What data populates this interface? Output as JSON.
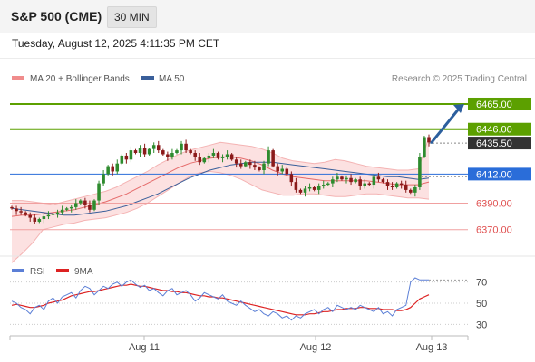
{
  "header": {
    "instrument": "S&P 500 (CME)",
    "timeframe": "30 MIN",
    "datetime": "Tuesday, August 12, 2025 4:11:35 PM CET"
  },
  "legend": {
    "bollinger_label": "MA 20 + Bollinger Bands",
    "ma50_label": "MA 50",
    "credit": "Research © 2025 Trading Central",
    "colors": {
      "bollinger": "#f08c8c",
      "ma50": "#3a5f9a"
    }
  },
  "chart_data": [
    {
      "type": "candlestick",
      "title": "",
      "x_ticks": [
        "Aug 11",
        "Aug 12",
        "Aug 13"
      ],
      "ylim": [
        6352,
        6478
      ],
      "levels": [
        {
          "value": 6465.0,
          "label": "6465.00",
          "role": "resistance",
          "color": "#5ca000"
        },
        {
          "value": 6446.0,
          "label": "6446.00",
          "role": "resistance",
          "color": "#5ca000"
        },
        {
          "value": 6435.5,
          "label": "6435.50",
          "role": "last price",
          "color": "#333333"
        },
        {
          "value": 6412.0,
          "label": "6412.00",
          "role": "pivot",
          "color": "#2a6dd9"
        },
        {
          "value": 6390.0,
          "label": "6390.00",
          "role": "support",
          "color": "#e05050"
        },
        {
          "value": 6370.0,
          "label": "6370.00",
          "role": "support",
          "color": "#e05050"
        }
      ],
      "close_path": [
        6386,
        6384,
        6383,
        6381,
        6379,
        6376,
        6378,
        6380,
        6381,
        6382,
        6383,
        6385,
        6386,
        6387,
        6390,
        6392,
        6389,
        6385,
        6392,
        6405,
        6412,
        6418,
        6414,
        6420,
        6426,
        6423,
        6430,
        6428,
        6432,
        6427,
        6431,
        6434,
        6430,
        6427,
        6425,
        6428,
        6430,
        6435,
        6430,
        6428,
        6425,
        6421,
        6424,
        6426,
        6428,
        6424,
        6425,
        6427,
        6423,
        6420,
        6418,
        6421,
        6419,
        6417,
        6415,
        6420,
        6430,
        6418,
        6414,
        6416,
        6412,
        6406,
        6400,
        6398,
        6401,
        6402,
        6400,
        6403,
        6404,
        6405,
        6408,
        6410,
        6408,
        6409,
        6406,
        6408,
        6403,
        6405,
        6404,
        6410,
        6408,
        6406,
        6403,
        6402,
        6405,
        6404,
        6400,
        6398,
        6402,
        6425,
        6440,
        6436
      ],
      "bollinger": {
        "upper": [
          6392,
          6392,
          6391,
          6390,
          6389,
          6391,
          6393,
          6395,
          6397,
          6399,
          6402,
          6406,
          6410,
          6414,
          6419,
          6423,
          6427,
          6430,
          6432,
          6434,
          6436,
          6435,
          6434,
          6433,
          6431,
          6428,
          6424,
          6422,
          6421,
          6420,
          6421,
          6423,
          6422,
          6420,
          6418,
          6417,
          6416,
          6415,
          6415,
          6416,
          6440
        ],
        "lower": [
          6345,
          6352,
          6360,
          6370,
          6372,
          6374,
          6375,
          6377,
          6378,
          6379,
          6381,
          6383,
          6386,
          6390,
          6395,
          6400,
          6405,
          6410,
          6413,
          6414,
          6413,
          6411,
          6408,
          6404,
          6400,
          6398,
          6396,
          6396,
          6397,
          6397,
          6396,
          6395,
          6395,
          6396,
          6397,
          6397,
          6396,
          6395,
          6394,
          6394,
          6393
        ],
        "middle": [
          6380,
          6381,
          6381,
          6382,
          6383,
          6384,
          6385,
          6387,
          6389,
          6391,
          6394,
          6397,
          6401,
          6405,
          6409,
          6413,
          6417,
          6420,
          6422,
          6424,
          6425,
          6425,
          6424,
          6422,
          6419,
          6415,
          6412,
          6410,
          6409,
          6408,
          6407,
          6407,
          6407,
          6407,
          6407,
          6406,
          6405,
          6404,
          6404,
          6404,
          6406
        ]
      },
      "ma50": [
        6386,
        6385,
        6384,
        6383,
        6382,
        6381,
        6381,
        6382,
        6383,
        6384,
        6386,
        6388,
        6391,
        6394,
        6397,
        6401,
        6405,
        6409,
        6412,
        6415,
        6417,
        6419,
        6420,
        6421,
        6421,
        6421,
        6420,
        6419,
        6418,
        6417,
        6416,
        6415,
        6414,
        6413,
        6412,
        6411,
        6410,
        6410,
        6409,
        6408,
        6409
      ],
      "forecast_arrow": {
        "from": 6436,
        "to": 6465
      }
    },
    {
      "type": "line",
      "title": "",
      "series": [
        {
          "name": "RSI",
          "color": "#5b7fd6"
        },
        {
          "name": "9MA",
          "color": "#dd2222"
        }
      ],
      "y_ticks": [
        70,
        50,
        30
      ],
      "ylim": [
        20,
        80
      ],
      "rsi": [
        52,
        50,
        46,
        44,
        40,
        46,
        48,
        44,
        52,
        55,
        50,
        56,
        58,
        60,
        55,
        62,
        66,
        64,
        58,
        62,
        66,
        64,
        68,
        70,
        66,
        70,
        72,
        68,
        65,
        67,
        62,
        64,
        60,
        57,
        62,
        64,
        58,
        60,
        62,
        58,
        52,
        55,
        60,
        58,
        56,
        54,
        58,
        52,
        50,
        48,
        52,
        48,
        45,
        42,
        44,
        40,
        38,
        42,
        40,
        36,
        38,
        34,
        38,
        36,
        40,
        42,
        44,
        40,
        44,
        46,
        42,
        48,
        46,
        44,
        46,
        44,
        48,
        46,
        44,
        42,
        46,
        40,
        42,
        38,
        44,
        46,
        48,
        70,
        74,
        72,
        72,
        72
      ],
      "ma9": [
        48,
        49,
        48,
        47,
        46,
        46,
        47,
        48,
        50,
        51,
        52,
        53,
        55,
        57,
        58,
        59,
        60,
        61,
        61,
        62,
        63,
        64,
        65,
        66,
        67,
        67,
        68,
        67,
        66,
        66,
        65,
        64,
        63,
        62,
        62,
        61,
        61,
        60,
        60,
        59,
        58,
        57,
        57,
        56,
        56,
        55,
        55,
        54,
        53,
        52,
        51,
        50,
        49,
        48,
        47,
        46,
        45,
        44,
        43,
        42,
        41,
        40,
        39,
        39,
        39,
        40,
        40,
        41,
        42,
        42,
        43,
        44,
        44,
        45,
        45,
        45,
        46,
        46,
        45,
        45,
        45,
        44,
        44,
        44,
        43,
        43,
        44,
        46,
        50,
        54,
        56,
        58
      ]
    }
  ]
}
